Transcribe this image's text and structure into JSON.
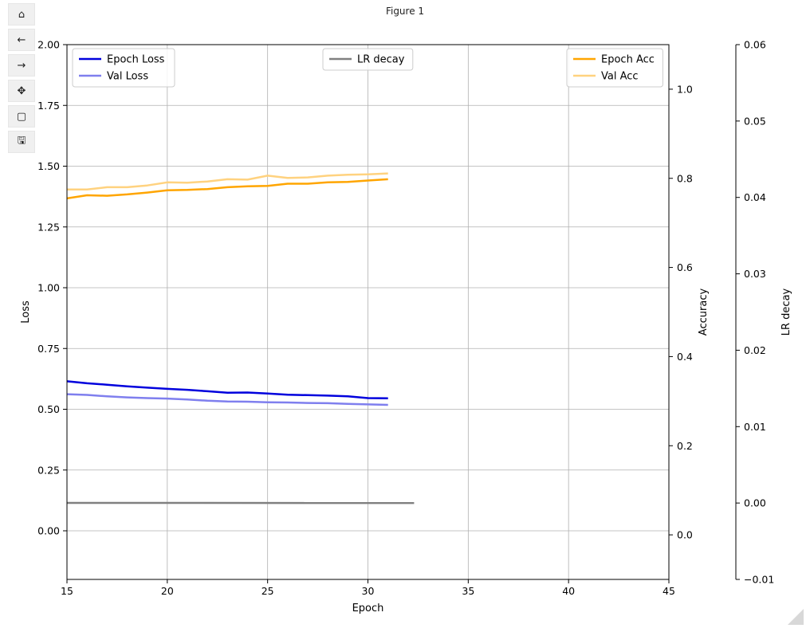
{
  "window": {
    "title": "Figure 1"
  },
  "toolbar": [
    {
      "name": "home-button",
      "icon": "home-icon",
      "glyph": "⌂"
    },
    {
      "name": "back-button",
      "icon": "arrow-left-icon",
      "glyph": "←"
    },
    {
      "name": "forward-button",
      "icon": "arrow-right-icon",
      "glyph": "→"
    },
    {
      "name": "pan-button",
      "icon": "move-icon",
      "glyph": "✥"
    },
    {
      "name": "zoom-button",
      "icon": "zoom-rect-icon",
      "glyph": "▢"
    },
    {
      "name": "save-button",
      "icon": "save-icon",
      "glyph": "🖫"
    }
  ],
  "chart_data": {
    "type": "line",
    "xlabel": "Epoch",
    "xlim": [
      15,
      45
    ],
    "xticks": [
      15,
      20,
      25,
      30,
      35,
      40,
      45
    ],
    "grid": true,
    "axes": {
      "loss": {
        "ylabel": "Loss",
        "ylim": [
          -0.2,
          2.0
        ],
        "ticks": [
          "0.00",
          "0.25",
          "0.50",
          "0.75",
          "1.00",
          "1.25",
          "1.50",
          "1.75",
          "2.00"
        ]
      },
      "accuracy": {
        "ylabel": "Accuracy",
        "ylim": [
          -0.1,
          1.1
        ],
        "ticks": [
          "0.0",
          "0.2",
          "0.4",
          "0.6",
          "0.8",
          "1.0"
        ]
      },
      "lr": {
        "ylabel": "LR decay",
        "ylim": [
          -0.01,
          0.06
        ],
        "ticks": [
          "−0.01",
          "0.00",
          "0.01",
          "0.02",
          "0.03",
          "0.04",
          "0.05",
          "0.06"
        ]
      }
    },
    "series": [
      {
        "name": "Epoch Loss",
        "axis": "loss",
        "color": "#0000dd",
        "legend": "top-left",
        "x": [
          15,
          16,
          17,
          18,
          19,
          20,
          21,
          22,
          23,
          24,
          25,
          26,
          27,
          28,
          29,
          30,
          31
        ],
        "y": [
          0.615,
          0.607,
          0.601,
          0.594,
          0.589,
          0.584,
          0.58,
          0.574,
          0.568,
          0.569,
          0.565,
          0.56,
          0.558,
          0.556,
          0.553,
          0.546,
          0.545
        ]
      },
      {
        "name": "Val Loss",
        "axis": "loss",
        "color": "#7f7fee",
        "legend": "top-left",
        "x": [
          15,
          16,
          17,
          18,
          19,
          20,
          21,
          22,
          23,
          24,
          25,
          26,
          27,
          28,
          29,
          30,
          31
        ],
        "y": [
          0.562,
          0.559,
          0.553,
          0.549,
          0.546,
          0.544,
          0.54,
          0.535,
          0.532,
          0.531,
          0.529,
          0.528,
          0.526,
          0.525,
          0.522,
          0.52,
          0.518
        ]
      },
      {
        "name": "Epoch Acc",
        "axis": "accuracy",
        "color": "#ffa500",
        "legend": "top-right",
        "x": [
          15,
          16,
          17,
          18,
          19,
          20,
          21,
          22,
          23,
          24,
          25,
          26,
          27,
          28,
          29,
          30,
          31
        ],
        "y": [
          0.755,
          0.762,
          0.761,
          0.764,
          0.768,
          0.773,
          0.774,
          0.776,
          0.78,
          0.782,
          0.783,
          0.788,
          0.788,
          0.791,
          0.792,
          0.795,
          0.798
        ]
      },
      {
        "name": "Val Acc",
        "axis": "accuracy",
        "color": "#ffd27f",
        "legend": "top-right",
        "x": [
          15,
          16,
          17,
          18,
          19,
          20,
          21,
          22,
          23,
          24,
          25,
          26,
          27,
          28,
          29,
          30,
          31
        ],
        "y": [
          0.775,
          0.775,
          0.78,
          0.78,
          0.784,
          0.791,
          0.79,
          0.793,
          0.798,
          0.797,
          0.806,
          0.801,
          0.802,
          0.806,
          0.808,
          0.809,
          0.811
        ]
      },
      {
        "name": "LR decay",
        "axis": "lr",
        "color": "#808080",
        "legend": "top-center",
        "x": [
          15,
          32.3
        ],
        "y": [
          2e-05,
          0.0
        ]
      }
    ]
  }
}
